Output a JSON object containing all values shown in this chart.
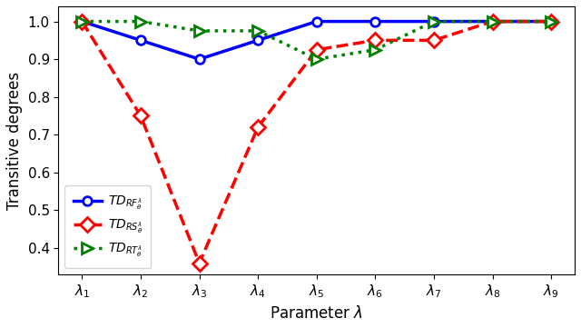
{
  "x_labels": [
    "1",
    "2",
    "3",
    "4",
    "5",
    "6",
    "7",
    "8",
    "9"
  ],
  "td_rf": [
    1.0,
    0.95,
    0.9,
    0.95,
    1.0,
    1.0,
    1.0,
    1.0,
    1.0
  ],
  "td_rs": [
    1.0,
    0.75,
    0.36,
    0.72,
    0.925,
    0.95,
    0.95,
    1.0,
    1.0
  ],
  "td_rt": [
    1.0,
    1.0,
    0.975,
    0.975,
    0.9,
    0.925,
    1.0,
    1.0,
    1.0
  ],
  "color_rf": "#0000ff",
  "color_rs": "#ff0000",
  "color_rt": "#008000",
  "xlabel": "Parameter $\\lambda$",
  "ylabel": "Transitive degrees",
  "legend_rf": "$TD_{RF_{\\theta}^{\\lambda}}$",
  "legend_rs": "$TD_{RS_{\\theta}^{\\lambda}}$",
  "legend_rt": "$TD_{RT_{\\theta}^{\\lambda}}$",
  "ylim": [
    0.33,
    1.04
  ],
  "yticks": [
    0.4,
    0.5,
    0.6,
    0.7,
    0.8,
    0.9,
    1.0
  ],
  "figsize": [
    6.4,
    3.61
  ],
  "dpi": 100
}
